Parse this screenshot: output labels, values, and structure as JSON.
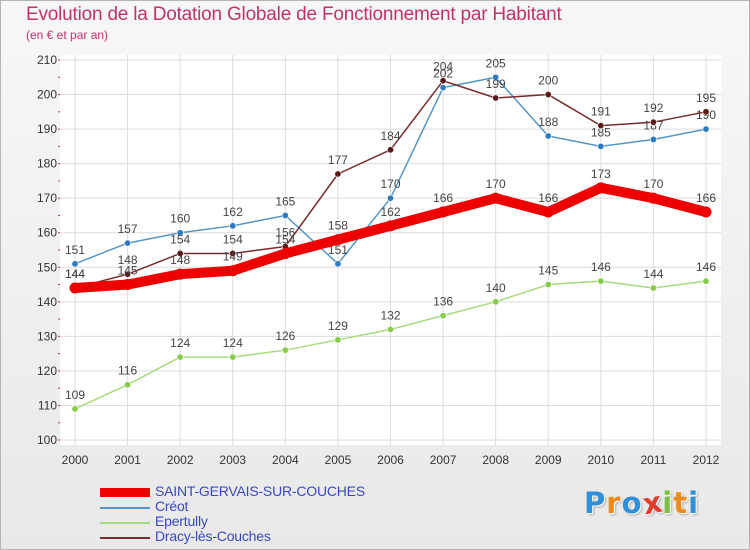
{
  "title": "Evolution de la Dotation Globale de Fonctionnement par Habitant",
  "subtitle": "(en € et par an)",
  "logo": {
    "letters": [
      "P",
      "r",
      "o",
      "x",
      "i",
      "t",
      "i"
    ]
  },
  "chart_data": {
    "type": "line",
    "title": "Evolution de la Dotation Globale de Fonctionnement par Habitant",
    "ylabel": "(en € et par an)",
    "xlabel": "",
    "x": [
      "2000",
      "2001",
      "2002",
      "2003",
      "2004",
      "2005",
      "2006",
      "2007",
      "2008",
      "2009",
      "2010",
      "2011",
      "2012"
    ],
    "ylim": [
      100,
      210
    ],
    "yticks": [
      100,
      110,
      120,
      130,
      140,
      150,
      160,
      170,
      180,
      190,
      200,
      210
    ],
    "grid": true,
    "legend_position": "bottom-left",
    "series": [
      {
        "name": "SAINT-GERVAIS-SUR-COUCHES",
        "color": "#ee0000",
        "emphasis": true,
        "values": [
          144,
          145,
          148,
          149,
          154,
          158,
          162,
          166,
          170,
          166,
          173,
          170,
          166
        ],
        "labels": [
          "144",
          "145",
          "148",
          "149",
          "154",
          "158",
          "162",
          "166",
          "170",
          "166",
          "173",
          "170",
          "166"
        ]
      },
      {
        "name": "Créot",
        "color": "#5596c9",
        "marker": "#2f7bbf",
        "emphasis": false,
        "values": [
          151,
          157,
          160,
          162,
          165,
          151,
          170,
          202,
          205,
          188,
          185,
          187,
          190
        ],
        "labels": [
          "151",
          "157",
          "160",
          "162",
          "165",
          "151",
          "170",
          "202",
          "205",
          "188",
          "185",
          "187",
          "190"
        ]
      },
      {
        "name": "Epertully",
        "color": "#a7dc7a",
        "marker": "#86cc4a",
        "emphasis": false,
        "values": [
          109,
          116,
          124,
          124,
          126,
          129,
          132,
          136,
          140,
          145,
          146,
          144,
          146
        ],
        "labels": [
          "109",
          "116",
          "124",
          "124",
          "126",
          "129",
          "132",
          "136",
          "140",
          "145",
          "146",
          "144",
          "146"
        ]
      },
      {
        "name": "Dracy-lès-Couches",
        "color": "#7a2c2c",
        "marker": "#5a1a1a",
        "emphasis": false,
        "values": [
          144,
          148,
          154,
          154,
          156,
          177,
          184,
          204,
          199,
          200,
          191,
          192,
          195
        ],
        "labels": [
          "144",
          "148",
          "154",
          "154",
          "156",
          "177",
          "184",
          "204",
          "199",
          "200",
          "191",
          "192",
          "195"
        ]
      }
    ]
  }
}
